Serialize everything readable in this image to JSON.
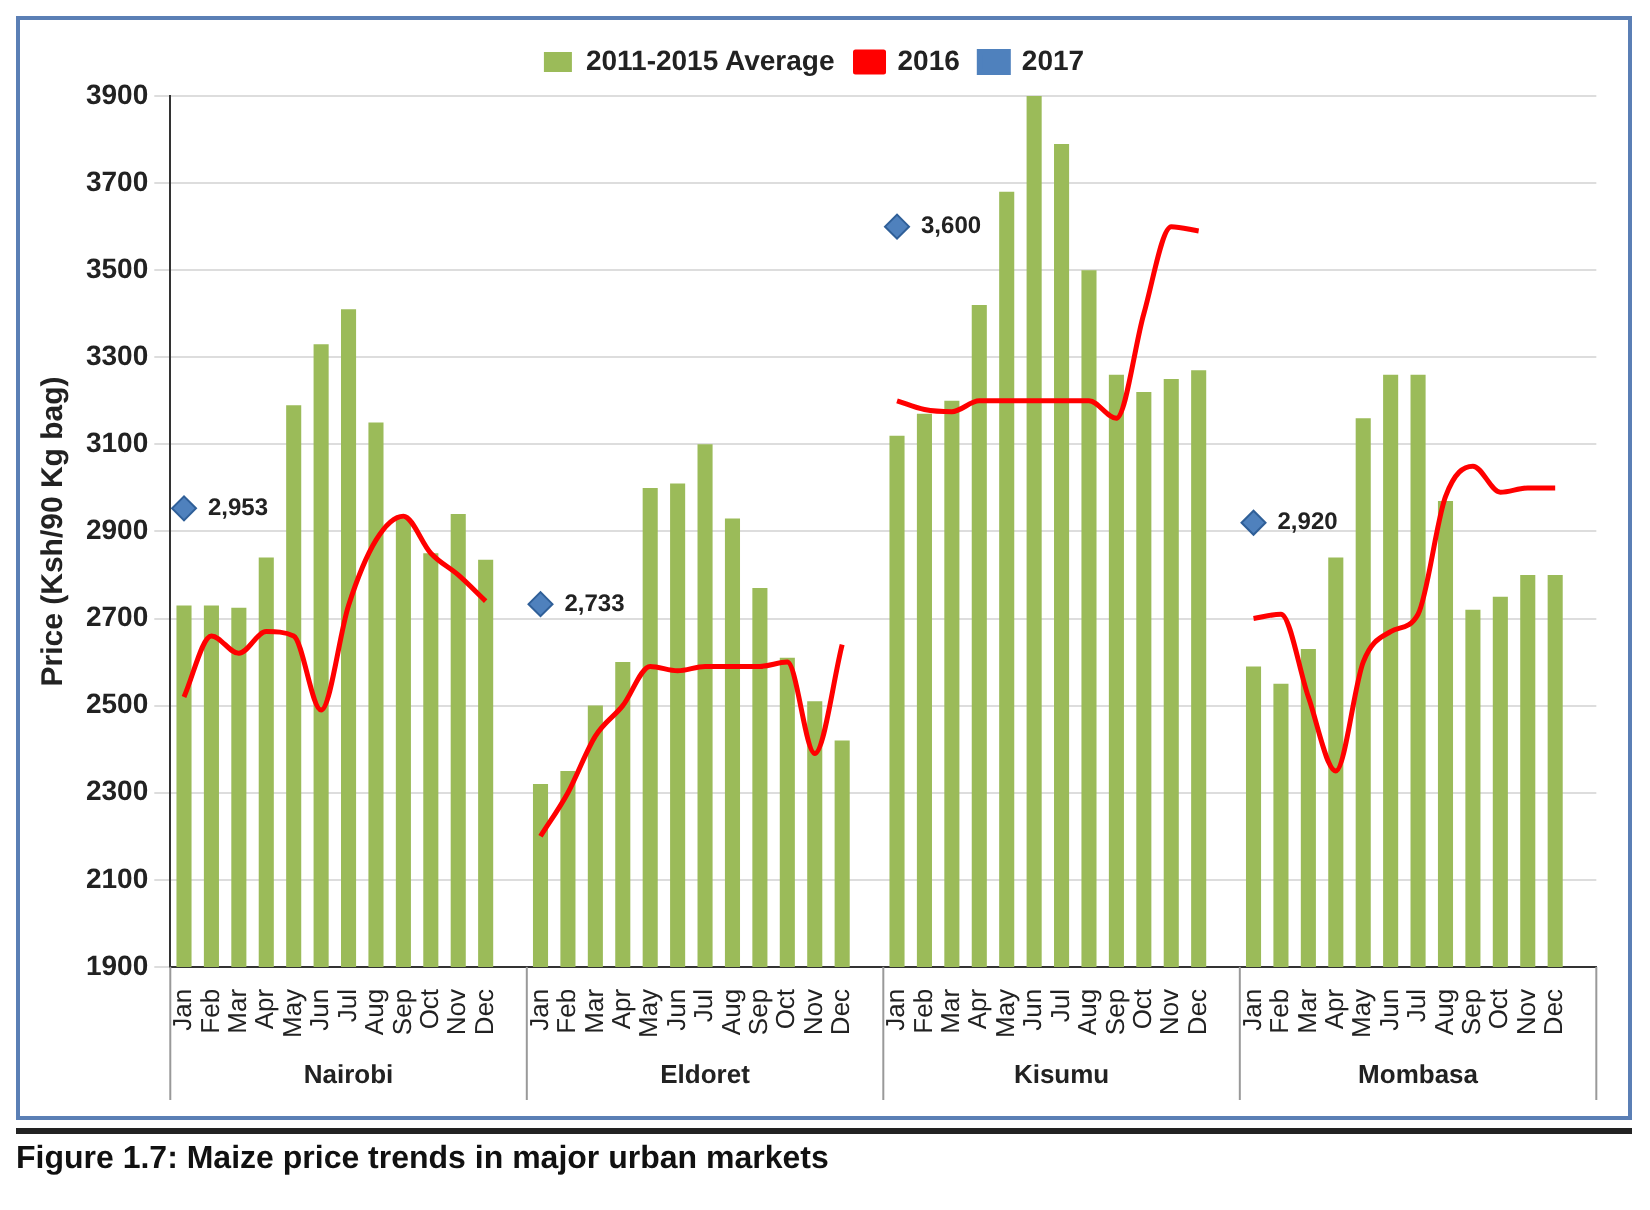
{
  "chart_data": {
    "type": "bar",
    "title": "Figure 1.7:  Maize price trends in major urban markets",
    "ylabel": "Price (Ksh/90 Kg bag)",
    "categories": [
      "Jan",
      "Feb",
      "Mar",
      "Apr",
      "May",
      "Jun",
      "Jul",
      "Aug",
      "Sep",
      "Oct",
      "Nov",
      "Dec",
      null,
      "Jan",
      "Feb",
      "Mar",
      "Apr",
      "May",
      "Jun",
      "Jul",
      "Aug",
      "Sep",
      "Oct",
      "Nov",
      "Dec",
      null,
      "Jan",
      "Feb",
      "Mar",
      "Apr",
      "May",
      "Jun",
      "Jul",
      "Aug",
      "Sep",
      "Oct",
      "Nov",
      "Dec",
      null,
      "Jan",
      "Feb",
      "Mar",
      "Apr",
      "May",
      "Jun",
      "Jul",
      "Aug",
      "Sep",
      "Oct",
      "Nov",
      "Dec",
      null
    ],
    "annotations": [
      "Nairobi",
      "Eldoret",
      "Kisumu",
      "Mombasa"
    ],
    "series": [
      {
        "name": "2011-2015 Average",
        "color": "#9bbb59",
        "values": [
          2730,
          2730,
          2725,
          2840,
          3190,
          3330,
          3410,
          3150,
          2930,
          2850,
          2940,
          2835,
          null,
          2320,
          2350,
          2500,
          2600,
          3000,
          3010,
          3100,
          2930,
          2770,
          2610,
          2510,
          2420,
          null,
          3120,
          3170,
          3200,
          3420,
          3680,
          3900,
          3790,
          3500,
          3260,
          3220,
          3250,
          3270,
          null,
          2590,
          2550,
          2630,
          2840,
          3160,
          3260,
          3260,
          2970,
          2720,
          2750,
          2800,
          2800,
          null
        ]
      },
      {
        "name": "2016",
        "type": "line",
        "color": "#ff0000",
        "marker": "none",
        "values": [
          2520,
          2660,
          2620,
          2670,
          2660,
          2490,
          2730,
          2880,
          2935,
          2850,
          2800,
          2740,
          null,
          2200,
          2300,
          2430,
          2500,
          2590,
          2580,
          2590,
          2590,
          2590,
          2600,
          2390,
          2640,
          null,
          3200,
          3180,
          3175,
          3200,
          3200,
          3200,
          3200,
          3200,
          3160,
          3400,
          3600,
          3590,
          null,
          2700,
          2710,
          2520,
          2350,
          2600,
          2670,
          2710,
          2980,
          3050,
          2990,
          3000,
          3000,
          null
        ]
      },
      {
        "name": "2017",
        "type": "scatter",
        "color": "#4f81bd",
        "marker": "diamond",
        "values": [
          2953,
          null,
          null,
          null,
          null,
          null,
          null,
          null,
          null,
          null,
          null,
          null,
          null,
          2733,
          null,
          null,
          null,
          null,
          null,
          null,
          null,
          null,
          null,
          null,
          null,
          null,
          3600,
          null,
          null,
          null,
          null,
          null,
          null,
          null,
          null,
          null,
          null,
          null,
          null,
          2920,
          null,
          null,
          null,
          null,
          null,
          null,
          null,
          null,
          null,
          null,
          null,
          null
        ],
        "value_labels": [
          "2,953",
          null,
          null,
          null,
          null,
          null,
          null,
          null,
          null,
          null,
          null,
          null,
          null,
          "2,733",
          null,
          null,
          null,
          null,
          null,
          null,
          null,
          null,
          null,
          null,
          null,
          null,
          "3,600",
          null,
          null,
          null,
          null,
          null,
          null,
          null,
          null,
          null,
          null,
          null,
          null,
          "2,920",
          null,
          null,
          null,
          null,
          null,
          null,
          null,
          null,
          null,
          null,
          null,
          null
        ]
      }
    ],
    "ylim": [
      1900,
      3900
    ],
    "yticks": [
      1900,
      2100,
      2300,
      2500,
      2700,
      2900,
      3100,
      3300,
      3500,
      3700,
      3900
    ],
    "grid": "y",
    "legend": "top"
  }
}
